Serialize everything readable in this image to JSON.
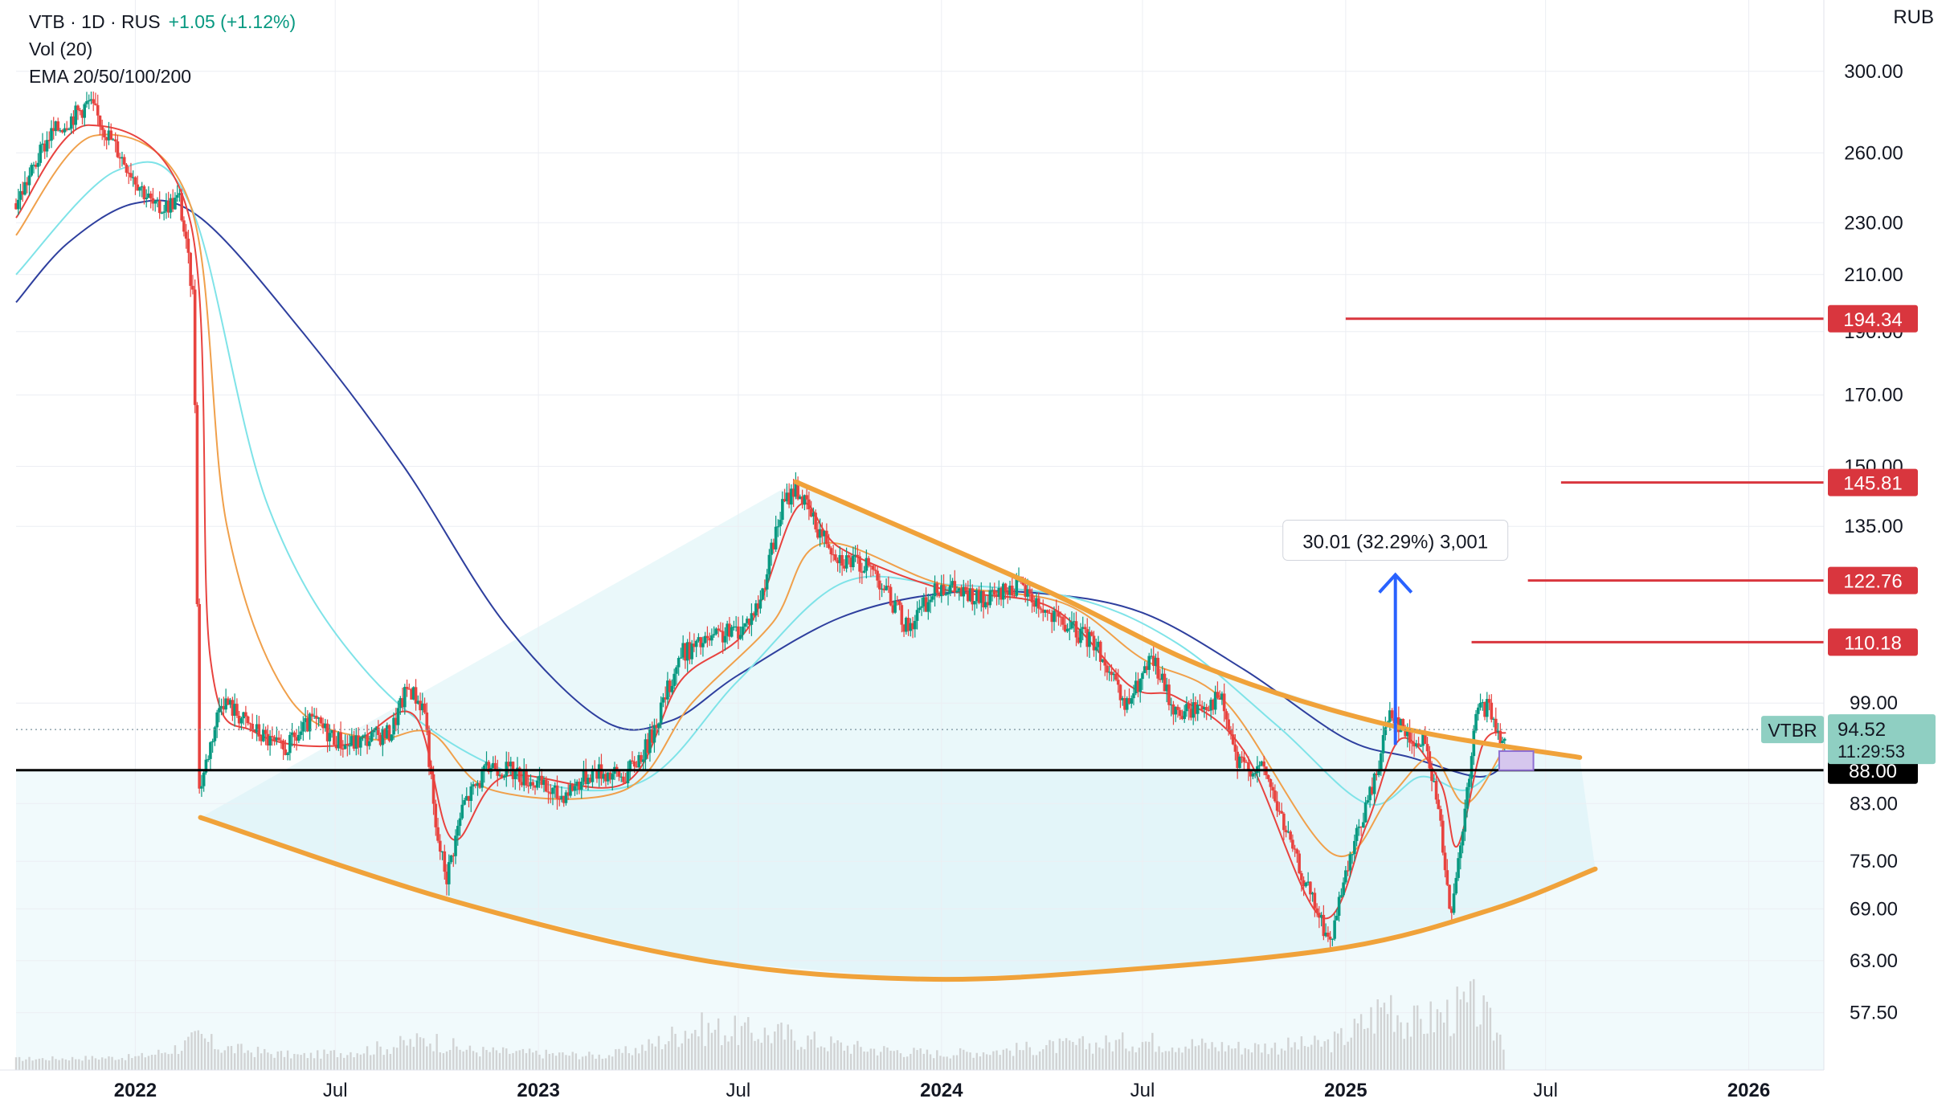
{
  "legend": {
    "symbol": "VTB · 1D · RUS",
    "change": "+1.05 (+1.12%)",
    "volume": "Vol (20)",
    "ema": "EMA 20/50/100/200"
  },
  "currency": "RUB",
  "colors": {
    "price_up": "#089981",
    "price_down": "#e8433f",
    "ema20": "#e8433f",
    "ema50": "#f0a04b",
    "ema100": "#7fe3e8",
    "ema200": "#2e3f9e",
    "trendline": "#f0a23a",
    "level_line": "#d9363e",
    "support": "#000000",
    "measure": "#2962ff",
    "shade": "#d8f2f6",
    "volume": "#c9c9c9"
  },
  "chart_data": {
    "type": "candlestick",
    "title": "",
    "y_scale": "log",
    "ylim": [
      52,
      340
    ],
    "y_ticks": [
      "300.00",
      "260.00",
      "230.00",
      "210.00",
      "190.00",
      "170.00",
      "150.00",
      "135.00",
      "99.00",
      "83.00",
      "75.00",
      "69.00",
      "63.00",
      "57.50"
    ],
    "x_range": [
      "2021-09-15",
      "2026-03-10"
    ],
    "x_ticks": [
      {
        "date": "2022-01-01",
        "label": "2022",
        "bold": true
      },
      {
        "date": "2022-07-01",
        "label": "Jul",
        "bold": false
      },
      {
        "date": "2023-01-01",
        "label": "2023",
        "bold": true
      },
      {
        "date": "2023-07-01",
        "label": "Jul",
        "bold": false
      },
      {
        "date": "2024-01-01",
        "label": "2024",
        "bold": true
      },
      {
        "date": "2024-07-01",
        "label": "Jul",
        "bold": false
      },
      {
        "date": "2025-01-01",
        "label": "2025",
        "bold": true
      },
      {
        "date": "2025-07-01",
        "label": "Jul",
        "bold": false
      },
      {
        "date": "2026-01-01",
        "label": "2026",
        "bold": true
      }
    ],
    "price_path": [
      [
        "2021-09-15",
        238
      ],
      [
        "2021-10-15",
        268
      ],
      [
        "2021-11-20",
        284
      ],
      [
        "2021-12-15",
        262
      ],
      [
        "2022-01-20",
        235
      ],
      [
        "2022-02-10",
        240
      ],
      [
        "2022-02-23",
        200
      ],
      [
        "2022-02-28",
        85
      ],
      [
        "2022-03-20",
        100
      ],
      [
        "2022-04-15",
        95
      ],
      [
        "2022-05-15",
        91
      ],
      [
        "2022-06-10",
        96
      ],
      [
        "2022-07-10",
        92
      ],
      [
        "2022-08-20",
        94
      ],
      [
        "2022-09-05",
        102
      ],
      [
        "2022-09-20",
        98
      ],
      [
        "2022-09-30",
        79
      ],
      [
        "2022-10-10",
        73
      ],
      [
        "2022-10-25",
        83
      ],
      [
        "2022-11-20",
        89
      ],
      [
        "2022-12-20",
        87
      ],
      [
        "2023-01-20",
        84
      ],
      [
        "2023-02-20",
        88
      ],
      [
        "2023-03-20",
        87
      ],
      [
        "2023-04-10",
        92
      ],
      [
        "2023-05-10",
        108
      ],
      [
        "2023-06-10",
        111
      ],
      [
        "2023-07-05",
        113
      ],
      [
        "2023-07-20",
        118
      ],
      [
        "2023-08-10",
        140
      ],
      [
        "2023-08-22",
        145
      ],
      [
        "2023-09-10",
        135
      ],
      [
        "2023-10-01",
        128
      ],
      [
        "2023-11-01",
        125
      ],
      [
        "2023-12-01",
        113
      ],
      [
        "2024-01-01",
        122
      ],
      [
        "2024-02-10",
        118
      ],
      [
        "2024-03-10",
        122
      ],
      [
        "2024-04-10",
        115
      ],
      [
        "2024-05-20",
        110
      ],
      [
        "2024-06-15",
        98
      ],
      [
        "2024-07-10",
        107
      ],
      [
        "2024-08-01",
        97
      ],
      [
        "2024-09-10",
        100
      ],
      [
        "2024-09-25",
        89
      ],
      [
        "2024-10-20",
        88
      ],
      [
        "2024-11-15",
        76
      ],
      [
        "2024-12-05",
        69
      ],
      [
        "2024-12-18",
        65
      ],
      [
        "2025-01-10",
        78
      ],
      [
        "2025-01-28",
        87
      ],
      [
        "2025-02-10",
        98
      ],
      [
        "2025-02-28",
        93
      ],
      [
        "2025-03-15",
        92
      ],
      [
        "2025-03-28",
        80
      ],
      [
        "2025-04-07",
        68
      ],
      [
        "2025-04-20",
        83
      ],
      [
        "2025-04-30",
        98
      ],
      [
        "2025-05-10",
        98
      ],
      [
        "2025-05-20",
        93.5
      ],
      [
        "2025-05-26",
        94.52
      ]
    ],
    "ema_20": [
      [
        "2021-09-15",
        232
      ],
      [
        "2021-11-20",
        273
      ],
      [
        "2022-02-20",
        230
      ],
      [
        "2022-03-10",
        107
      ],
      [
        "2022-04-20",
        94
      ],
      [
        "2022-07-10",
        92
      ],
      [
        "2022-09-10",
        97
      ],
      [
        "2022-10-15",
        78
      ],
      [
        "2022-12-01",
        87
      ],
      [
        "2023-03-20",
        86
      ],
      [
        "2023-05-10",
        103
      ],
      [
        "2023-07-10",
        113
      ],
      [
        "2023-08-25",
        140
      ],
      [
        "2023-10-01",
        130
      ],
      [
        "2024-01-01",
        121
      ],
      [
        "2024-04-10",
        117
      ],
      [
        "2024-06-20",
        102
      ],
      [
        "2024-08-01",
        100
      ],
      [
        "2024-10-01",
        91
      ],
      [
        "2024-12-10",
        68
      ],
      [
        "2025-01-20",
        80
      ],
      [
        "2025-02-20",
        93
      ],
      [
        "2025-03-28",
        86
      ],
      [
        "2025-04-12",
        77
      ],
      [
        "2025-05-05",
        92
      ],
      [
        "2025-05-26",
        94
      ]
    ],
    "ema_50": [
      [
        "2021-09-15",
        225
      ],
      [
        "2021-11-25",
        268
      ],
      [
        "2022-02-20",
        237
      ],
      [
        "2022-03-25",
        135
      ],
      [
        "2022-05-20",
        100
      ],
      [
        "2022-08-01",
        93
      ],
      [
        "2022-09-25",
        94
      ],
      [
        "2022-11-20",
        85
      ],
      [
        "2023-03-20",
        85
      ],
      [
        "2023-05-20",
        99
      ],
      [
        "2023-08-01",
        114
      ],
      [
        "2023-09-15",
        131
      ],
      [
        "2024-01-01",
        122
      ],
      [
        "2024-04-20",
        118
      ],
      [
        "2024-07-01",
        107
      ],
      [
        "2024-09-15",
        99
      ],
      [
        "2024-12-20",
        76
      ],
      [
        "2025-02-10",
        84
      ],
      [
        "2025-03-20",
        90
      ],
      [
        "2025-04-20",
        83
      ],
      [
        "2025-05-26",
        92
      ]
    ],
    "ema_100": [
      [
        "2021-09-15",
        210
      ],
      [
        "2021-12-15",
        252
      ],
      [
        "2022-02-20",
        237
      ],
      [
        "2022-05-01",
        140
      ],
      [
        "2022-08-01",
        104
      ],
      [
        "2022-12-01",
        88
      ],
      [
        "2023-04-01",
        86
      ],
      [
        "2023-07-01",
        103
      ],
      [
        "2023-10-01",
        122
      ],
      [
        "2024-01-01",
        122
      ],
      [
        "2024-05-01",
        119
      ],
      [
        "2024-08-01",
        110
      ],
      [
        "2024-11-01",
        95
      ],
      [
        "2025-01-20",
        83
      ],
      [
        "2025-03-10",
        87
      ],
      [
        "2025-04-20",
        85
      ],
      [
        "2025-05-26",
        90
      ]
    ],
    "ema_200": [
      [
        "2021-09-15",
        200
      ],
      [
        "2021-11-01",
        222
      ],
      [
        "2022-01-01",
        238
      ],
      [
        "2022-03-01",
        232
      ],
      [
        "2022-06-01",
        190
      ],
      [
        "2022-09-01",
        150
      ],
      [
        "2022-12-01",
        114
      ],
      [
        "2023-03-01",
        96
      ],
      [
        "2023-05-01",
        96
      ],
      [
        "2023-07-01",
        104
      ],
      [
        "2023-10-01",
        115
      ],
      [
        "2024-01-01",
        120
      ],
      [
        "2024-04-01",
        120
      ],
      [
        "2024-07-01",
        116
      ],
      [
        "2024-10-01",
        105
      ],
      [
        "2025-01-01",
        93
      ],
      [
        "2025-03-01",
        90
      ],
      [
        "2025-05-01",
        87
      ],
      [
        "2025-05-26",
        89
      ]
    ],
    "volume": [
      [
        "2021-09-15",
        0.07
      ],
      [
        "2022-01-01",
        0.1
      ],
      [
        "2022-02-28",
        0.4
      ],
      [
        "2022-03-20",
        0.25
      ],
      [
        "2022-06-01",
        0.12
      ],
      [
        "2022-09-25",
        0.38
      ],
      [
        "2022-11-01",
        0.2
      ],
      [
        "2023-03-01",
        0.12
      ],
      [
        "2023-05-15",
        0.55
      ],
      [
        "2023-08-10",
        0.45
      ],
      [
        "2023-10-15",
        0.25
      ],
      [
        "2024-01-01",
        0.15
      ],
      [
        "2024-04-01",
        0.25
      ],
      [
        "2024-07-01",
        0.35
      ],
      [
        "2024-10-01",
        0.25
      ],
      [
        "2024-12-15",
        0.3
      ],
      [
        "2025-02-10",
        1.0
      ],
      [
        "2025-03-01",
        0.6
      ],
      [
        "2025-04-10",
        0.8
      ],
      [
        "2025-04-30",
        0.9
      ],
      [
        "2025-05-26",
        0.35
      ]
    ],
    "horizontal_levels": [
      {
        "value": 194.34,
        "label": "194.34",
        "from": "2025-01-01"
      },
      {
        "value": 145.81,
        "label": "145.81",
        "from": "2025-07-15"
      },
      {
        "value": 122.76,
        "label": "122.76",
        "from": "2025-06-15"
      },
      {
        "value": 110.18,
        "label": "110.18",
        "from": "2025-04-25"
      }
    ],
    "support_level": {
      "value": 88.0,
      "label": "88.00"
    },
    "last_price": {
      "symbol": "VTBR",
      "value": 94.52,
      "label": "94.52",
      "countdown": "11:29:53"
    },
    "trendlines": {
      "upper": [
        [
          "2023-08-22",
          146
        ],
        [
          "2024-04-01",
          121
        ],
        [
          "2024-09-01",
          105
        ],
        [
          "2025-02-15",
          95
        ],
        [
          "2025-08-01",
          90
        ]
      ],
      "lower": [
        [
          "2022-03-01",
          81
        ],
        [
          "2022-10-15",
          70
        ],
        [
          "2023-06-01",
          63
        ],
        [
          "2023-12-15",
          61
        ],
        [
          "2024-06-15",
          62
        ],
        [
          "2025-01-01",
          64.5
        ],
        [
          "2025-05-15",
          69
        ],
        [
          "2025-08-15",
          74
        ]
      ]
    },
    "measure": {
      "from_date": "2025-02-15",
      "from_value": 92,
      "to_value": 124,
      "label": "30.01 (32.29%) 3,001"
    },
    "target_box": {
      "from_date": "2025-05-20",
      "to_date": "2025-06-20",
      "low": 88,
      "high": 91
    }
  }
}
